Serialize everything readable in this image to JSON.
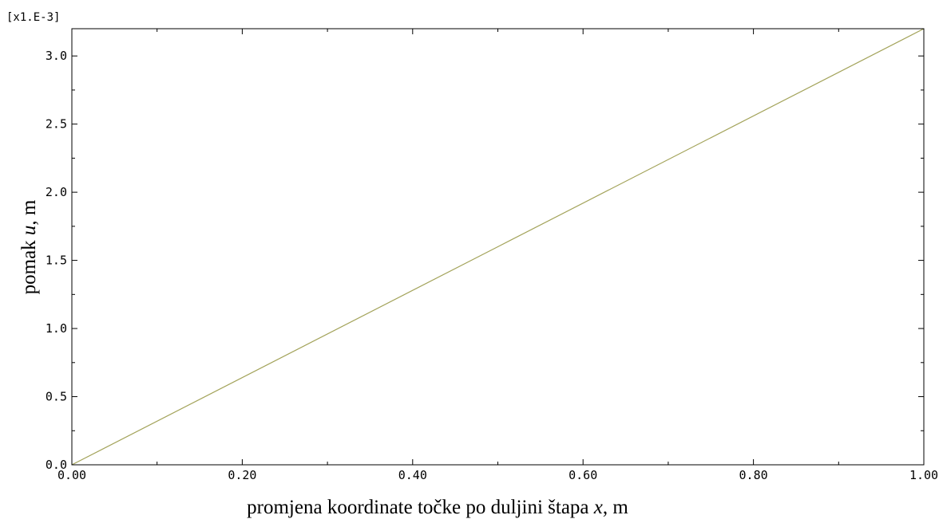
{
  "chart_data": {
    "type": "line",
    "title": "",
    "xlabel": {
      "prefix": "promjena koordinate točke po duljini štapa ",
      "symbol": "x",
      "unit": ", m"
    },
    "ylabel": {
      "prefix": "pomak ",
      "symbol": "u",
      "unit": ", m"
    },
    "y_multiplier_label": "[x1.E-3]",
    "xlim": [
      0.0,
      1.0
    ],
    "ylim": [
      0.0,
      3.2
    ],
    "x_ticks": [
      0.0,
      0.2,
      0.4,
      0.6,
      0.8,
      1.0
    ],
    "x_tick_labels": [
      "0.00",
      "0.20",
      "0.40",
      "0.60",
      "0.80",
      "1.00"
    ],
    "y_ticks": [
      0.0,
      0.5,
      1.0,
      1.5,
      2.0,
      2.5,
      3.0
    ],
    "y_tick_labels": [
      "0.0",
      "0.5",
      "1.0",
      "1.5",
      "2.0",
      "2.5",
      "3.0"
    ],
    "grid": false,
    "series": [
      {
        "color": "#a3a35a",
        "x": [
          0.0,
          0.5,
          1.0
        ],
        "y": [
          0.0,
          1.6,
          3.2
        ]
      }
    ],
    "colors": {
      "axis": "#000000",
      "line": "#a3a35a"
    }
  }
}
